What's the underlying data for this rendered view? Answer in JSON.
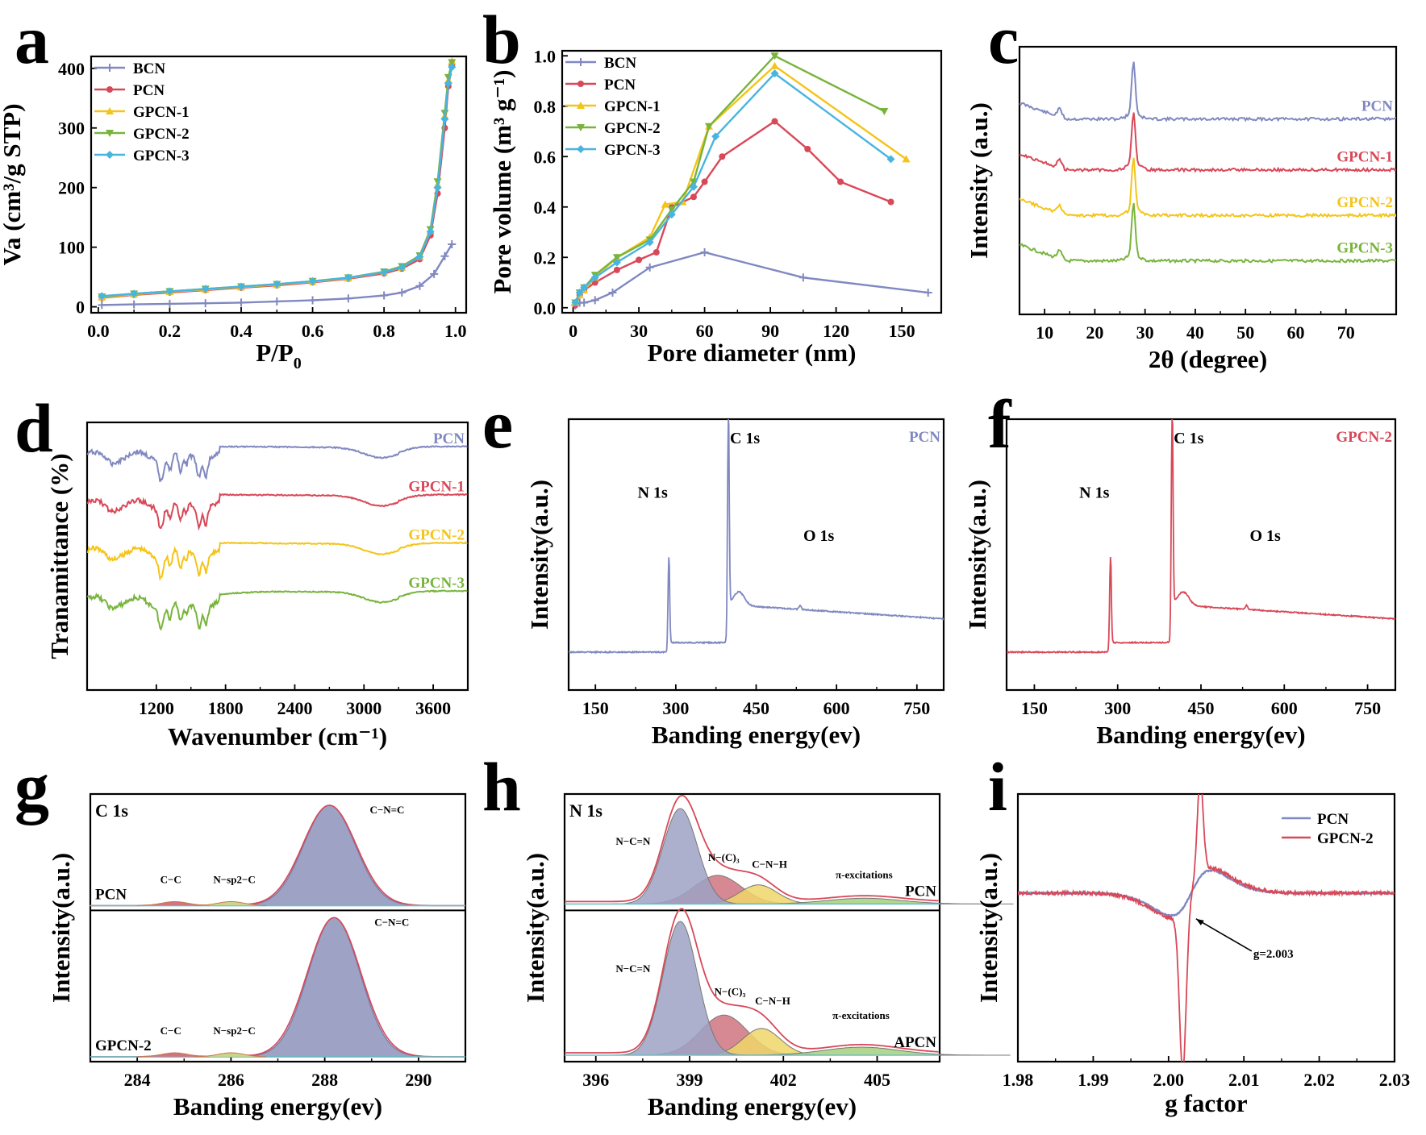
{
  "colors": {
    "blue": "#8088c0",
    "red": "#d84858",
    "yellow": "#f4c418",
    "green": "#78b43c",
    "cyan": "#48b4e0",
    "fill_blue": "#9ea2c4",
    "fill_red": "#cf7480",
    "fill_yellow": "#efd66a",
    "fill_green": "#a6d07a"
  },
  "chart_data": [
    {
      "id": "a",
      "panel_label": "a",
      "type": "line",
      "xlabel": "P/P",
      "xlabel_sub": "0",
      "ylabel": "Va (cm³/g STP)",
      "xlim": [
        -0.02,
        1.03
      ],
      "ylim": [
        -10,
        420
      ],
      "xticks": [
        0.0,
        0.2,
        0.4,
        0.6,
        0.8,
        1.0
      ],
      "xtick_labels": [
        "0.0",
        "0.2",
        "0.4",
        "0.6",
        "0.8",
        "1.0"
      ],
      "yticks": [
        0,
        100,
        200,
        300,
        400
      ],
      "ytick_labels": [
        "0",
        "100",
        "200",
        "300",
        "400"
      ],
      "series": [
        {
          "name": "BCN",
          "color": "blue",
          "x": [
            0.01,
            0.1,
            0.2,
            0.3,
            0.4,
            0.5,
            0.6,
            0.7,
            0.8,
            0.85,
            0.9,
            0.94,
            0.97,
            0.99
          ],
          "y": [
            3,
            4,
            5,
            6,
            7,
            9,
            11,
            14,
            19,
            24,
            35,
            55,
            85,
            105
          ]
        },
        {
          "name": "PCN",
          "color": "red",
          "x": [
            0.01,
            0.1,
            0.2,
            0.3,
            0.4,
            0.5,
            0.6,
            0.7,
            0.8,
            0.85,
            0.9,
            0.93,
            0.95,
            0.97,
            0.98,
            0.99
          ],
          "y": [
            15,
            20,
            24,
            28,
            32,
            36,
            41,
            47,
            56,
            64,
            80,
            120,
            190,
            300,
            370,
            405
          ]
        },
        {
          "name": "GPCN-1",
          "color": "yellow",
          "x": [
            0.01,
            0.1,
            0.2,
            0.3,
            0.4,
            0.5,
            0.6,
            0.7,
            0.8,
            0.85,
            0.9,
            0.93,
            0.95,
            0.97,
            0.98,
            0.99
          ],
          "y": [
            16,
            21,
            25,
            29,
            33,
            37,
            42,
            48,
            58,
            66,
            84,
            128,
            205,
            320,
            380,
            412
          ]
        },
        {
          "name": "GPCN-2",
          "color": "green",
          "x": [
            0.01,
            0.1,
            0.2,
            0.3,
            0.4,
            0.5,
            0.6,
            0.7,
            0.8,
            0.85,
            0.9,
            0.93,
            0.95,
            0.97,
            0.98,
            0.99
          ],
          "y": [
            17,
            22,
            26,
            30,
            34,
            38,
            43,
            49,
            59,
            68,
            86,
            130,
            210,
            325,
            385,
            410
          ]
        },
        {
          "name": "GPCN-3",
          "color": "cyan",
          "x": [
            0.01,
            0.1,
            0.2,
            0.3,
            0.4,
            0.5,
            0.6,
            0.7,
            0.8,
            0.85,
            0.9,
            0.93,
            0.95,
            0.97,
            0.98,
            0.99
          ],
          "y": [
            18,
            22,
            26,
            30,
            34,
            38,
            43,
            49,
            58,
            66,
            84,
            126,
            200,
            315,
            375,
            402
          ]
        }
      ],
      "legend": "top-left"
    },
    {
      "id": "b",
      "panel_label": "b",
      "type": "line",
      "xlabel": "Pore diameter (nm)",
      "ylabel": "Pore volume (m³ g⁻¹)",
      "xlim": [
        -5,
        168
      ],
      "ylim": [
        -0.02,
        1.02
      ],
      "xticks": [
        0,
        30,
        60,
        90,
        120,
        150
      ],
      "xtick_labels": [
        "0",
        "30",
        "60",
        "90",
        "120",
        "150"
      ],
      "yticks": [
        0.0,
        0.2,
        0.4,
        0.6,
        0.8,
        1.0
      ],
      "ytick_labels": [
        "0.0",
        "0.2",
        "0.4",
        "0.6",
        "0.8",
        "1.0"
      ],
      "series": [
        {
          "name": "BCN",
          "color": "blue",
          "x": [
            1,
            3,
            5,
            10,
            18,
            35,
            60,
            105,
            162
          ],
          "y": [
            0.01,
            0.02,
            0.02,
            0.03,
            0.06,
            0.16,
            0.22,
            0.12,
            0.06
          ]
        },
        {
          "name": "PCN",
          "color": "red",
          "x": [
            1,
            3,
            5,
            10,
            20,
            30,
            38,
            45,
            55,
            60,
            68,
            92,
            107,
            122,
            145
          ],
          "y": [
            0.01,
            0.05,
            0.07,
            0.1,
            0.15,
            0.19,
            0.22,
            0.4,
            0.44,
            0.5,
            0.6,
            0.74,
            0.63,
            0.5,
            0.42
          ]
        },
        {
          "name": "GPCN-1",
          "color": "yellow",
          "x": [
            1,
            3,
            5,
            10,
            20,
            35,
            42,
            50,
            62,
            92,
            152
          ],
          "y": [
            0.02,
            0.05,
            0.07,
            0.12,
            0.2,
            0.28,
            0.41,
            0.42,
            0.72,
            0.96,
            0.59
          ]
        },
        {
          "name": "GPCN-2",
          "color": "green",
          "x": [
            1,
            3,
            5,
            10,
            20,
            35,
            45,
            55,
            62,
            92,
            142
          ],
          "y": [
            0.02,
            0.06,
            0.08,
            0.13,
            0.2,
            0.27,
            0.39,
            0.5,
            0.72,
            1.0,
            0.78
          ]
        },
        {
          "name": "GPCN-3",
          "color": "cyan",
          "x": [
            1,
            3,
            5,
            10,
            20,
            35,
            45,
            55,
            65,
            92,
            145
          ],
          "y": [
            0.02,
            0.06,
            0.08,
            0.12,
            0.18,
            0.26,
            0.37,
            0.48,
            0.68,
            0.93,
            0.59
          ]
        }
      ],
      "legend": "top-left"
    },
    {
      "id": "c",
      "panel_label": "c",
      "type": "line",
      "xlabel": "2θ (degree)",
      "ylabel": "Intensity (a.u.)",
      "xlim": [
        5,
        80
      ],
      "xticks": [
        10,
        20,
        30,
        40,
        50,
        60,
        70
      ],
      "xtick_labels": [
        "10",
        "20",
        "30",
        "40",
        "50",
        "60",
        "70"
      ],
      "peaks_2theta": [
        13.0,
        27.7
      ],
      "series": [
        {
          "name": "PCN",
          "color": "blue"
        },
        {
          "name": "GPCN-1",
          "color": "red"
        },
        {
          "name": "GPCN-2",
          "color": "yellow"
        },
        {
          "name": "GPCN-3",
          "color": "green"
        }
      ],
      "labels": [
        "PCN",
        "GPCN-1",
        "GPCN-2",
        "GPCN-3"
      ]
    },
    {
      "id": "d",
      "panel_label": "d",
      "type": "line",
      "xlabel": "Wavenumber (cm⁻¹)",
      "ylabel": "Tranamittance (%)",
      "xlim": [
        600,
        3900
      ],
      "xticks": [
        1200,
        1800,
        2400,
        3000,
        3600
      ],
      "xtick_labels": [
        "1200",
        "1800",
        "2400",
        "3000",
        "3600"
      ],
      "series": [
        {
          "name": "PCN",
          "color": "blue"
        },
        {
          "name": "GPCN-1",
          "color": "red"
        },
        {
          "name": "GPCN-2",
          "color": "yellow"
        },
        {
          "name": "GPCN-3",
          "color": "green"
        }
      ],
      "labels": [
        "PCN",
        "GPCN-1",
        "GPCN-2",
        "GPCN-3"
      ]
    },
    {
      "id": "e",
      "panel_label": "e",
      "type": "line",
      "xlabel": "Banding energy(ev)",
      "ylabel": "Intensity(a.u.)",
      "xlim": [
        100,
        800
      ],
      "xticks": [
        150,
        300,
        450,
        600,
        750
      ],
      "xtick_labels": [
        "150",
        "300",
        "450",
        "600",
        "750"
      ],
      "sample": "PCN",
      "color": "blue",
      "peaks": [
        {
          "label": "N 1s",
          "x": 287
        },
        {
          "label": "C 1s",
          "x": 398
        },
        {
          "label": "O 1s",
          "x": 532
        }
      ]
    },
    {
      "id": "f",
      "panel_label": "f",
      "type": "line",
      "xlabel": "Banding energy(ev)",
      "ylabel": "Intensity(a.u.)",
      "xlim": [
        100,
        800
      ],
      "xticks": [
        150,
        300,
        450,
        600,
        750
      ],
      "xtick_labels": [
        "150",
        "300",
        "450",
        "600",
        "750"
      ],
      "sample": "GPCN-2",
      "color": "red",
      "peaks": [
        {
          "label": "N 1s",
          "x": 287
        },
        {
          "label": "C 1s",
          "x": 398
        },
        {
          "label": "O 1s",
          "x": 532
        }
      ]
    },
    {
      "id": "g",
      "panel_label": "g",
      "type": "area",
      "title": "C 1s",
      "xlabel": "Banding energy(ev)",
      "ylabel": "Intensity(a.u.)",
      "xlim": [
        283,
        291
      ],
      "xticks": [
        284,
        286,
        288,
        290
      ],
      "xtick_labels": [
        "284",
        "286",
        "288",
        "290"
      ],
      "subplots": [
        {
          "sample": "PCN",
          "peaks": [
            {
              "label": "C−C",
              "center": 284.8
            },
            {
              "label": "N−sp2−C",
              "center": 286.0
            },
            {
              "label": "C−N=C",
              "center": 288.1
            }
          ]
        },
        {
          "sample": "GPCN-2",
          "peaks": [
            {
              "label": "C−C",
              "center": 284.8
            },
            {
              "label": "N−sp2−C",
              "center": 286.0
            },
            {
              "label": "C−N=C",
              "center": 288.2
            }
          ]
        }
      ]
    },
    {
      "id": "h",
      "panel_label": "h",
      "type": "area",
      "title": "N 1s",
      "xlabel": "Banding energy(ev)",
      "ylabel": "Intensity(a.u.)",
      "xlim": [
        395,
        407
      ],
      "xticks": [
        396,
        399,
        402,
        405
      ],
      "xtick_labels": [
        "396",
        "399",
        "402",
        "405"
      ],
      "subplots": [
        {
          "sample": "PCN",
          "peaks": [
            {
              "label": "N−C=N",
              "center": 398.7
            },
            {
              "label": "N−(C)₃",
              "center": 399.9
            },
            {
              "label": "C−N−H",
              "center": 401.2
            },
            {
              "label": "π-excitations",
              "center": 404.6
            }
          ]
        },
        {
          "sample": "APCN",
          "peaks": [
            {
              "label": "N−C=N",
              "center": 398.7
            },
            {
              "label": "N−(C)₃",
              "center": 400.1
            },
            {
              "label": "C−N−H",
              "center": 401.3
            },
            {
              "label": "π-excitations",
              "center": 404.5
            }
          ]
        }
      ]
    },
    {
      "id": "i",
      "panel_label": "i",
      "type": "line",
      "xlabel": "g factor",
      "ylabel": "Intensity(a.u.)",
      "xlim": [
        1.98,
        2.03
      ],
      "xticks": [
        1.98,
        1.99,
        2.0,
        2.01,
        2.02,
        2.03
      ],
      "xtick_labels": [
        "1.98",
        "1.99",
        "2.00",
        "2.01",
        "2.02",
        "2.03"
      ],
      "series": [
        {
          "name": "PCN",
          "color": "blue"
        },
        {
          "name": "GPCN-2",
          "color": "red"
        }
      ],
      "annotation": "g=2.003",
      "center_g": 2.003,
      "legend": "top-right"
    }
  ]
}
